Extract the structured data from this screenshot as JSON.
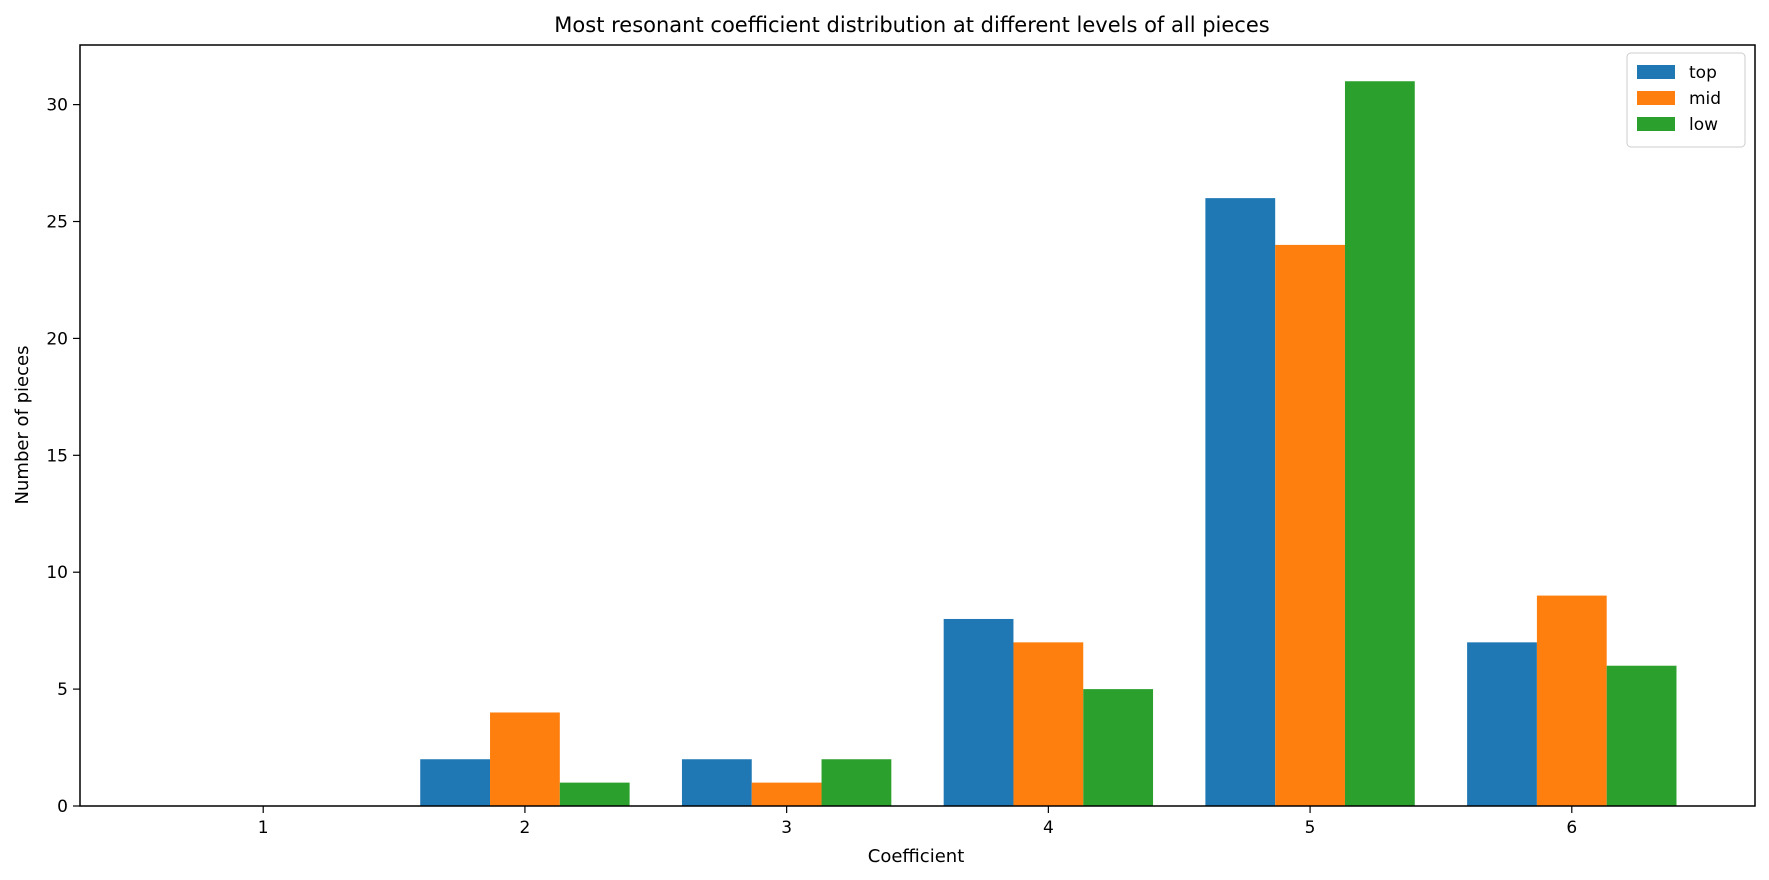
{
  "chart_data": {
    "type": "bar",
    "title": "Most resonant coefficient distribution at different levels of all pieces",
    "xlabel": "Coefficient",
    "ylabel": "Number of pieces",
    "categories": [
      "1",
      "2",
      "3",
      "4",
      "5",
      "6"
    ],
    "series": [
      {
        "name": "top",
        "color": "#1f77b4",
        "values": [
          0,
          2,
          2,
          8,
          26,
          7
        ]
      },
      {
        "name": "mid",
        "color": "#ff7f0e",
        "values": [
          0,
          4,
          1,
          7,
          24,
          9
        ]
      },
      {
        "name": "low",
        "color": "#2ca02c",
        "values": [
          0,
          1,
          2,
          5,
          31,
          6
        ]
      }
    ],
    "ylim": [
      0,
      32.55
    ],
    "yticks": [
      0,
      5,
      10,
      15,
      20,
      25,
      30
    ],
    "grid": false,
    "legend_position": "top-right"
  }
}
